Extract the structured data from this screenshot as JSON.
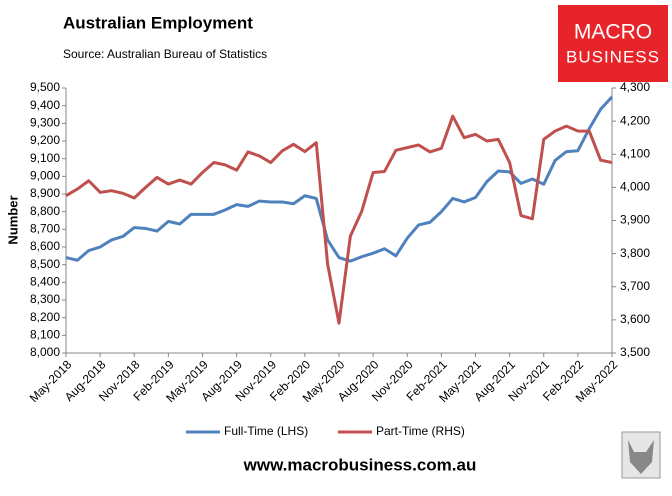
{
  "chart_data": {
    "type": "line",
    "title": "Australian Employment",
    "subtitle": "Source: Australian Bureau of Statistics",
    "ylabel": "Number",
    "logo": {
      "line1": "MACRO",
      "line2": "BUSINESS"
    },
    "website": "www.macrobusiness.com.au",
    "categories": [
      "May-2018",
      null,
      null,
      "Aug-2018",
      null,
      null,
      "Nov-2018",
      null,
      null,
      "Feb-2019",
      null,
      null,
      "May-2019",
      null,
      null,
      "Aug-2019",
      null,
      null,
      "Nov-2019",
      null,
      null,
      "Feb-2020",
      null,
      null,
      "May-2020",
      null,
      null,
      "Aug-2020",
      null,
      null,
      "Nov-2020",
      null,
      null,
      "Feb-2021",
      null,
      null,
      "May-2021",
      null,
      null,
      "Aug-2021",
      null,
      null,
      "Nov-2021",
      null,
      null,
      "Feb-2022",
      null,
      null,
      "May-2022"
    ],
    "series": [
      {
        "name": "Full-Time (LHS)",
        "color": "#4f81bd",
        "axis": "y",
        "values": [
          8540,
          8525,
          8580,
          8600,
          8640,
          8660,
          8710,
          8705,
          8690,
          8745,
          8730,
          8785,
          8785,
          8785,
          8810,
          8840,
          8830,
          8860,
          8855,
          8855,
          8845,
          8890,
          8875,
          8640,
          8540,
          8520,
          8545,
          8565,
          8590,
          8550,
          8650,
          8725,
          8740,
          8800,
          8875,
          8855,
          8880,
          8970,
          9030,
          9025,
          8960,
          8985,
          8955,
          9090,
          9140,
          9145,
          9270,
          9380,
          9450
        ]
      },
      {
        "name": "Part-Time (RHS)",
        "color": "#c0504d",
        "axis": "y2",
        "values": [
          3975,
          3995,
          4020,
          3985,
          3990,
          3982,
          3968,
          4000,
          4030,
          4010,
          4022,
          4010,
          4045,
          4075,
          4068,
          4052,
          4107,
          4095,
          4075,
          4110,
          4130,
          4108,
          4135,
          3768,
          3590,
          3853,
          3928,
          4045,
          4048,
          4112,
          4120,
          4128,
          4107,
          4118,
          4215,
          4150,
          4160,
          4140,
          4145,
          4075,
          3915,
          3905,
          4145,
          4170,
          4185,
          4170,
          4170,
          4082,
          4075
        ]
      }
    ],
    "ylim": [
      8000,
      9500
    ],
    "yticks": [
      {
        "value": 8000,
        "label": "8,000"
      },
      {
        "value": 8100,
        "label": "8,100"
      },
      {
        "value": 8200,
        "label": "8,200"
      },
      {
        "value": 8300,
        "label": "8,300"
      },
      {
        "value": 8400,
        "label": "8,400"
      },
      {
        "value": 8500,
        "label": "8,500"
      },
      {
        "value": 8600,
        "label": "8,600"
      },
      {
        "value": 8700,
        "label": "8,700"
      },
      {
        "value": 8800,
        "label": "8,800"
      },
      {
        "value": 8900,
        "label": "8,900"
      },
      {
        "value": 9000,
        "label": "9,000"
      },
      {
        "value": 9100,
        "label": "9,100"
      },
      {
        "value": 9200,
        "label": "9,200"
      },
      {
        "value": 9300,
        "label": "9,300"
      },
      {
        "value": 9400,
        "label": "9,400"
      },
      {
        "value": 9500,
        "label": "9,500"
      }
    ],
    "y2lim": [
      3500,
      4300
    ],
    "y2ticks": [
      {
        "value": 3500,
        "label": "3,500"
      },
      {
        "value": 3600,
        "label": "3,600"
      },
      {
        "value": 3700,
        "label": "3,700"
      },
      {
        "value": 3800,
        "label": "3,800"
      },
      {
        "value": 3900,
        "label": "3,900"
      },
      {
        "value": 4000,
        "label": "4,000"
      },
      {
        "value": 4100,
        "label": "4,100"
      },
      {
        "value": 4200,
        "label": "4,200"
      },
      {
        "value": 4300,
        "label": "4,300"
      }
    ],
    "grid": false
  }
}
